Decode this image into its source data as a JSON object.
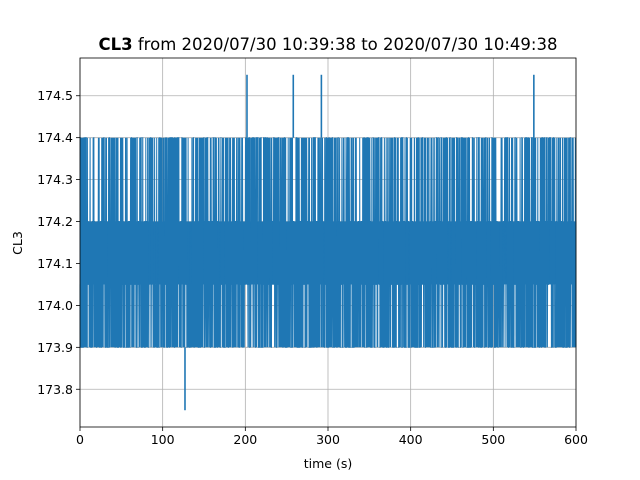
{
  "chart_data": {
    "type": "line",
    "title_bold": "CL3",
    "title_rest": " from 2020/07/30 10:39:38 to 2020/07/30 10:49:38",
    "xlabel": "time (s)",
    "ylabel": "CL3",
    "xlim": [
      0,
      600
    ],
    "ylim": [
      173.71,
      174.59
    ],
    "xticks": [
      0,
      100,
      200,
      300,
      400,
      500,
      600
    ],
    "yticks": [
      173.8,
      173.9,
      174.0,
      174.1,
      174.2,
      174.3,
      174.4,
      174.5
    ],
    "grid": true,
    "color": "#1f77b4",
    "series": [
      {
        "sampling_interval_s": 0.1,
        "base_levels": [
          173.9,
          174.05,
          174.2,
          174.4
        ],
        "dense_band": [
          174.05,
          174.2
        ],
        "spikes": [
          {
            "x": 127,
            "y": 173.75
          },
          {
            "x": 202,
            "y": 174.55
          },
          {
            "x": 258,
            "y": 174.55
          },
          {
            "x": 292,
            "y": 174.55
          },
          {
            "x": 549,
            "y": 174.55
          }
        ]
      }
    ]
  }
}
